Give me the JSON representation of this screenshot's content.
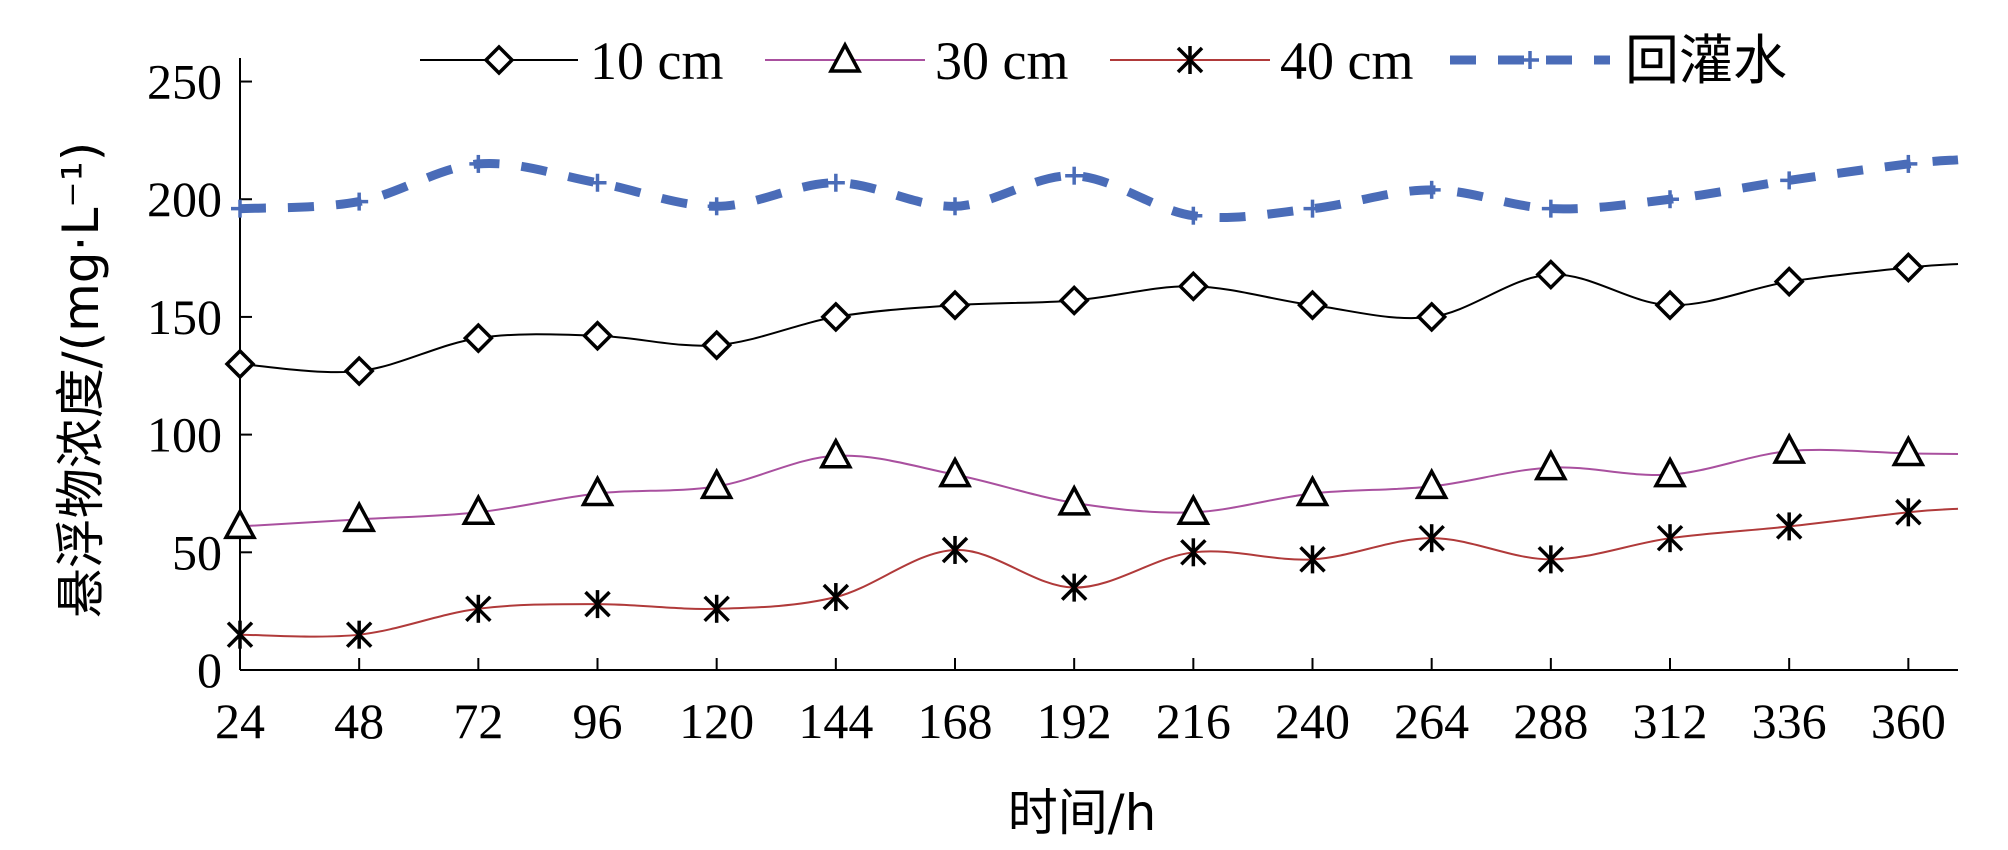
{
  "chart_data": {
    "type": "line",
    "xlabel": "时间/h",
    "ylabel": "悬浮物浓度/(mg·L⁻¹)",
    "x_ticks": [
      24,
      48,
      72,
      96,
      120,
      144,
      168,
      192,
      216,
      240,
      264,
      288,
      312,
      336,
      360
    ],
    "y_ticks": [
      0,
      50,
      100,
      150,
      200,
      250
    ],
    "xlim": [
      24,
      370
    ],
    "ylim": [
      0,
      260
    ],
    "grid": false,
    "legend_position": "top",
    "series": [
      {
        "name": "10 cm",
        "marker": "diamond",
        "line_style": "solid",
        "color": "#000000",
        "x": [
          24,
          48,
          72,
          96,
          120,
          144,
          168,
          192,
          216,
          240,
          264,
          288,
          312,
          336,
          360
        ],
        "values": [
          130,
          127,
          141,
          142,
          138,
          150,
          155,
          157,
          163,
          155,
          150,
          168,
          155,
          165,
          171
        ]
      },
      {
        "name": "30 cm",
        "marker": "triangle",
        "line_style": "solid",
        "color": "#a9509f",
        "x": [
          24,
          48,
          72,
          96,
          120,
          144,
          168,
          192,
          216,
          240,
          264,
          288,
          312,
          336,
          360
        ],
        "values": [
          61,
          64,
          67,
          75,
          78,
          91,
          83,
          71,
          67,
          75,
          78,
          86,
          83,
          93,
          92
        ]
      },
      {
        "name": "40 cm",
        "marker": "asterisk",
        "line_style": "solid",
        "color": "#b03a3a",
        "x": [
          24,
          48,
          72,
          96,
          120,
          144,
          168,
          192,
          216,
          240,
          264,
          288,
          312,
          336,
          360
        ],
        "values": [
          15,
          15,
          26,
          28,
          26,
          31,
          51,
          35,
          50,
          47,
          56,
          47,
          56,
          61,
          67
        ]
      },
      {
        "name": "回灌水",
        "marker": "plus",
        "line_style": "dashed",
        "color": "#4a6cb8",
        "x": [
          24,
          48,
          72,
          96,
          120,
          144,
          168,
          192,
          216,
          240,
          264,
          288,
          312,
          336,
          360
        ],
        "values": [
          196,
          199,
          215,
          207,
          197,
          207,
          197,
          210,
          193,
          196,
          204,
          196,
          200,
          208,
          215
        ]
      }
    ]
  }
}
